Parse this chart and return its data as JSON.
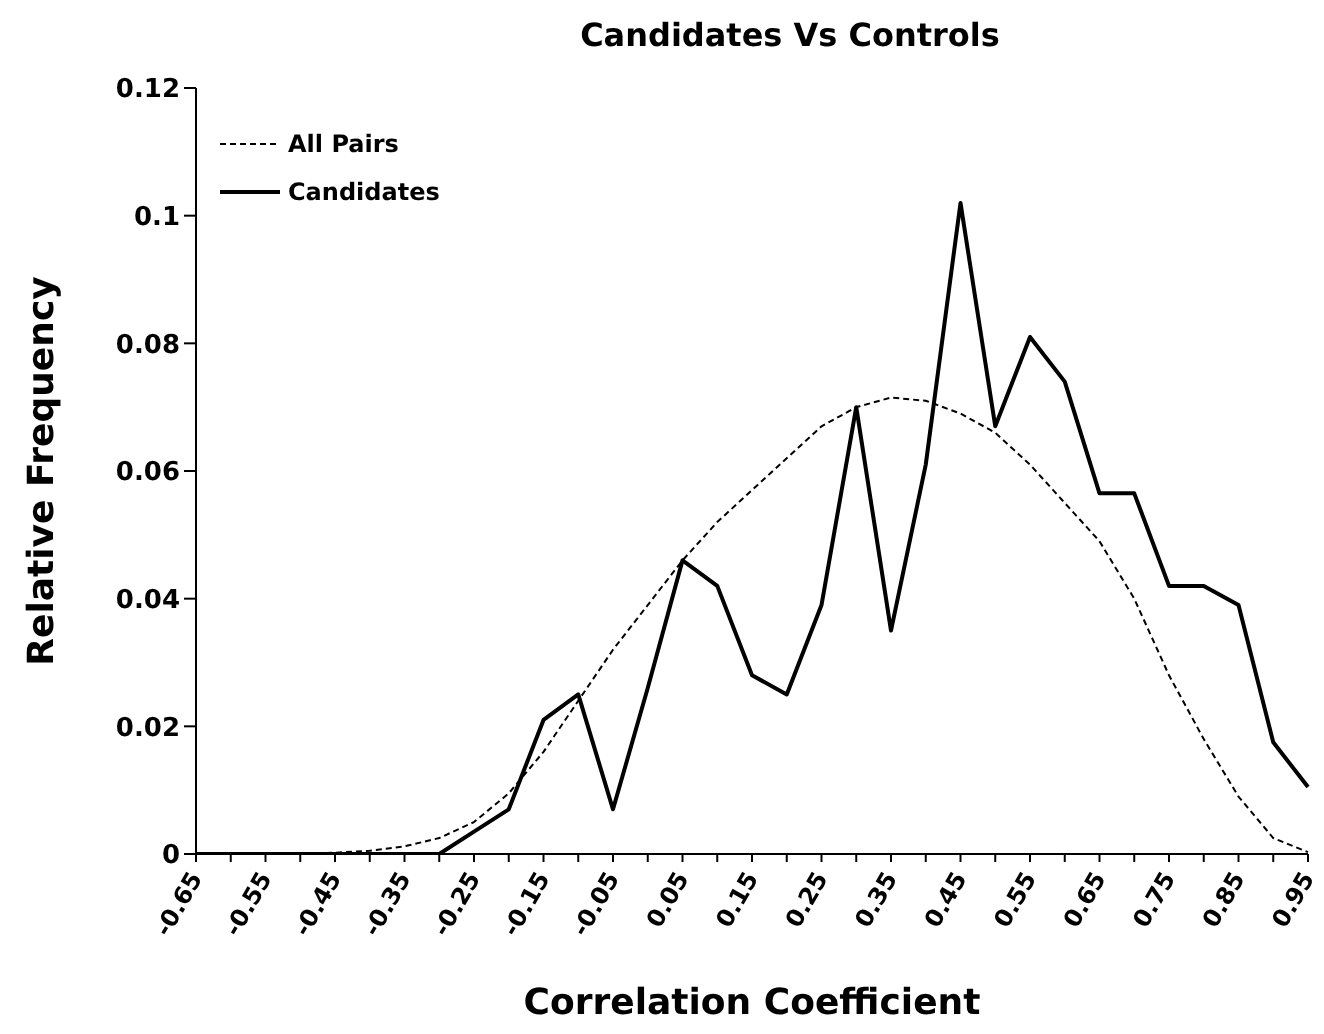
{
  "chart_data": {
    "type": "line",
    "title": "Candidates Vs Controls",
    "xlabel": "Correlation Coefficient",
    "ylabel": "Relative Frequency",
    "categories": [
      "-0.65",
      null,
      "-0.55",
      null,
      "-0.45",
      null,
      "-0.35",
      null,
      "-0.25",
      null,
      "-0.15",
      null,
      "-0.05",
      null,
      "0.05",
      null,
      "0.15",
      null,
      "0.25",
      null,
      "0.35",
      null,
      "0.45",
      null,
      "0.55",
      null,
      "0.65",
      null,
      "0.75",
      null,
      "0.85",
      null,
      "0.95"
    ],
    "series": [
      {
        "name": "All Pairs",
        "color": "#000000",
        "line_style": "dashed",
        "values": [
          0,
          0,
          0,
          0,
          0.0002,
          0.0005,
          0.0012,
          0.0025,
          0.005,
          0.0095,
          0.016,
          0.024,
          0.032,
          0.039,
          0.046,
          0.052,
          0.057,
          0.062,
          0.067,
          0.07,
          0.0715,
          0.071,
          0.069,
          0.066,
          0.061,
          0.055,
          0.049,
          0.04,
          0.028,
          0.018,
          0.009,
          0.0025,
          0.0003
        ]
      },
      {
        "name": "Candidates",
        "color": "#000000",
        "line_style": "solid",
        "values": [
          0,
          0,
          0,
          0,
          0,
          0,
          0,
          0,
          0.0035,
          0.007,
          0.021,
          0.025,
          0.007,
          0.026,
          0.046,
          0.042,
          0.028,
          0.025,
          0.039,
          0.07,
          0.035,
          0.061,
          0.102,
          0.067,
          0.081,
          0.074,
          0.0565,
          0.0565,
          0.042,
          0.042,
          0.039,
          0.0175,
          0.0105
        ]
      }
    ],
    "ylim": [
      0,
      0.12
    ],
    "yticks": [
      0,
      0.02,
      0.04,
      0.06,
      0.08,
      0.1,
      0.12
    ],
    "grid": false,
    "legend": "top left",
    "marker": "none"
  }
}
